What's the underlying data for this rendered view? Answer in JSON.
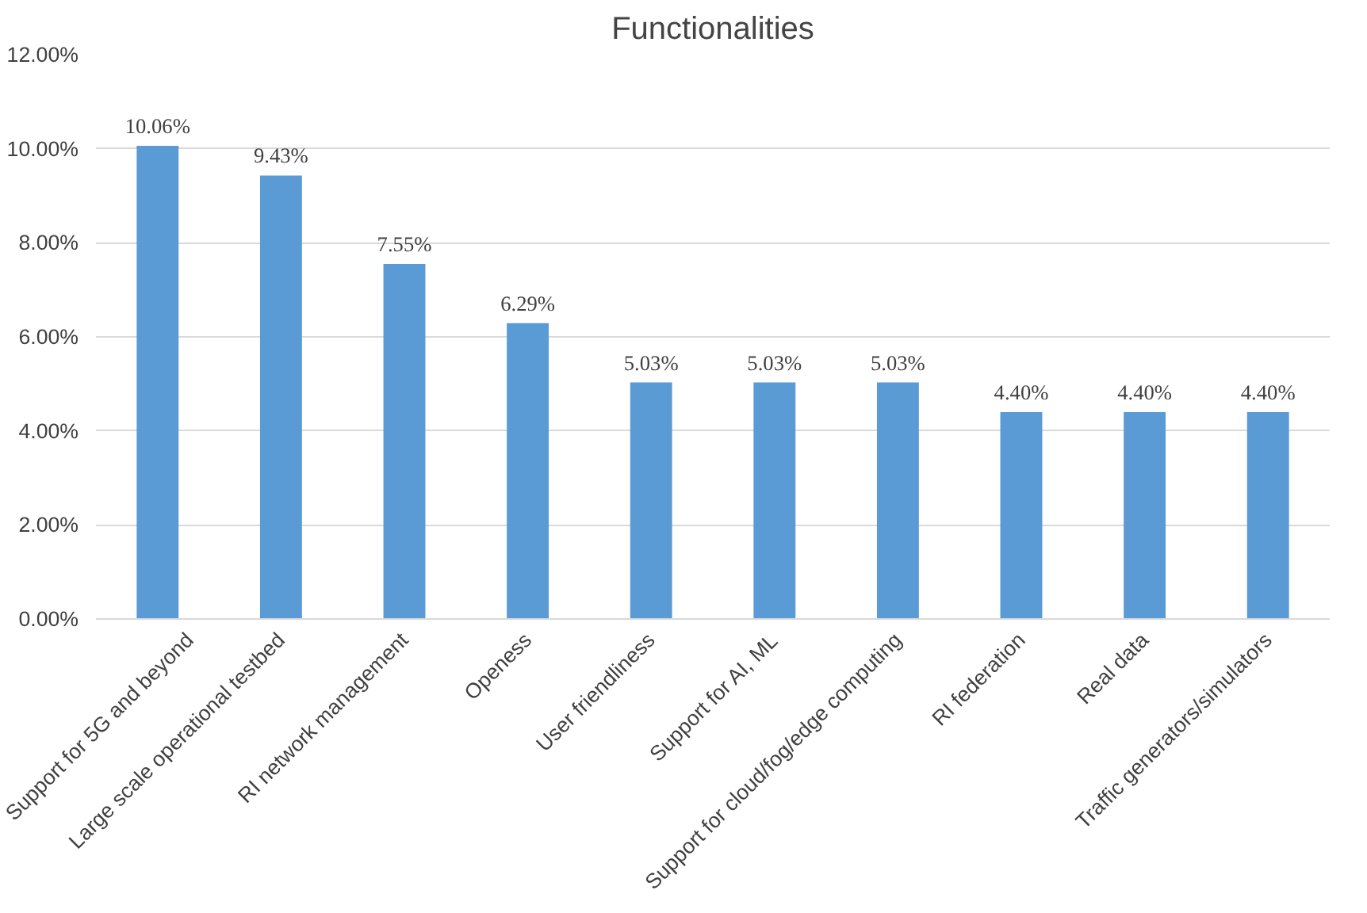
{
  "chart_data": {
    "type": "bar",
    "title": "Functionalities",
    "categories": [
      "Support for 5G and beyond",
      "Large scale operational testbed",
      "RI network management",
      "Openess",
      "User friendliness",
      "Support for AI, ML",
      "Support for cloud/fog/edge computing",
      "RI federation",
      "Real data",
      "Traffic generators/simulators"
    ],
    "values": [
      10.06,
      9.43,
      7.55,
      6.29,
      5.03,
      5.03,
      5.03,
      4.4,
      4.4,
      4.4
    ],
    "value_labels": [
      "10.06%",
      "9.43%",
      "7.55%",
      "6.29%",
      "5.03%",
      "5.03%",
      "5.03%",
      "4.40%",
      "4.40%",
      "4.40%"
    ],
    "color": "#5b9bd5",
    "ylim": [
      0,
      12
    ],
    "yticks": [
      {
        "value": 0,
        "label": "0.00%"
      },
      {
        "value": 2,
        "label": "2.00%"
      },
      {
        "value": 4,
        "label": "4.00%"
      },
      {
        "value": 6,
        "label": "6.00%"
      },
      {
        "value": 8,
        "label": "8.00%"
      },
      {
        "value": 10,
        "label": "10.00%"
      },
      {
        "value": 12,
        "label": "12.00%"
      }
    ],
    "grid": "y"
  }
}
